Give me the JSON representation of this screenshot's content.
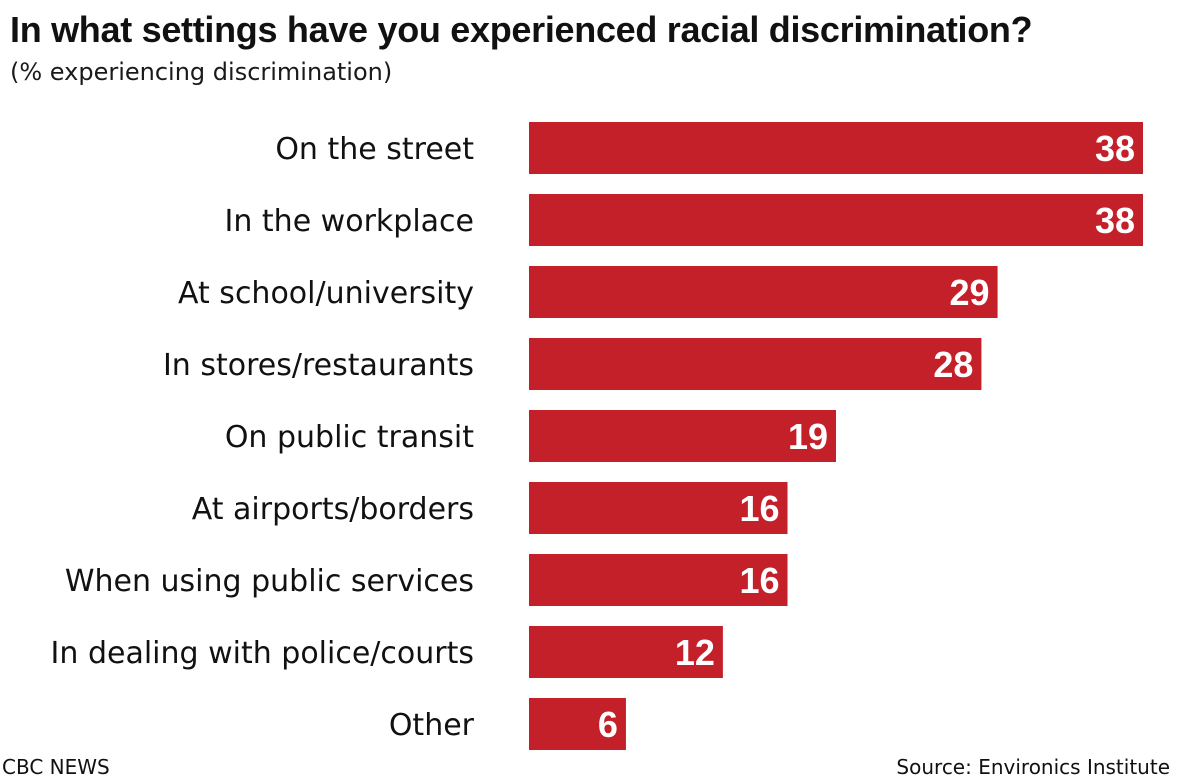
{
  "chart_data": {
    "type": "bar",
    "orientation": "horizontal",
    "title": "In what settings have you experienced racial discrimination?",
    "subtitle": "(% experiencing discrimination)",
    "categories": [
      "On the street",
      "In the workplace",
      "At school/university",
      "In stores/restaurants",
      "On public transit",
      "At airports/borders",
      "When using public services",
      "In dealing with police/courts",
      "Other"
    ],
    "values": [
      38,
      38,
      29,
      28,
      19,
      16,
      16,
      12,
      6
    ],
    "xlim": [
      0,
      38
    ],
    "grid": false,
    "legend": "none",
    "bar_color": "#c4202a"
  },
  "footer": {
    "brand": "CBC NEWS",
    "source": "Source: Environics Institute"
  }
}
